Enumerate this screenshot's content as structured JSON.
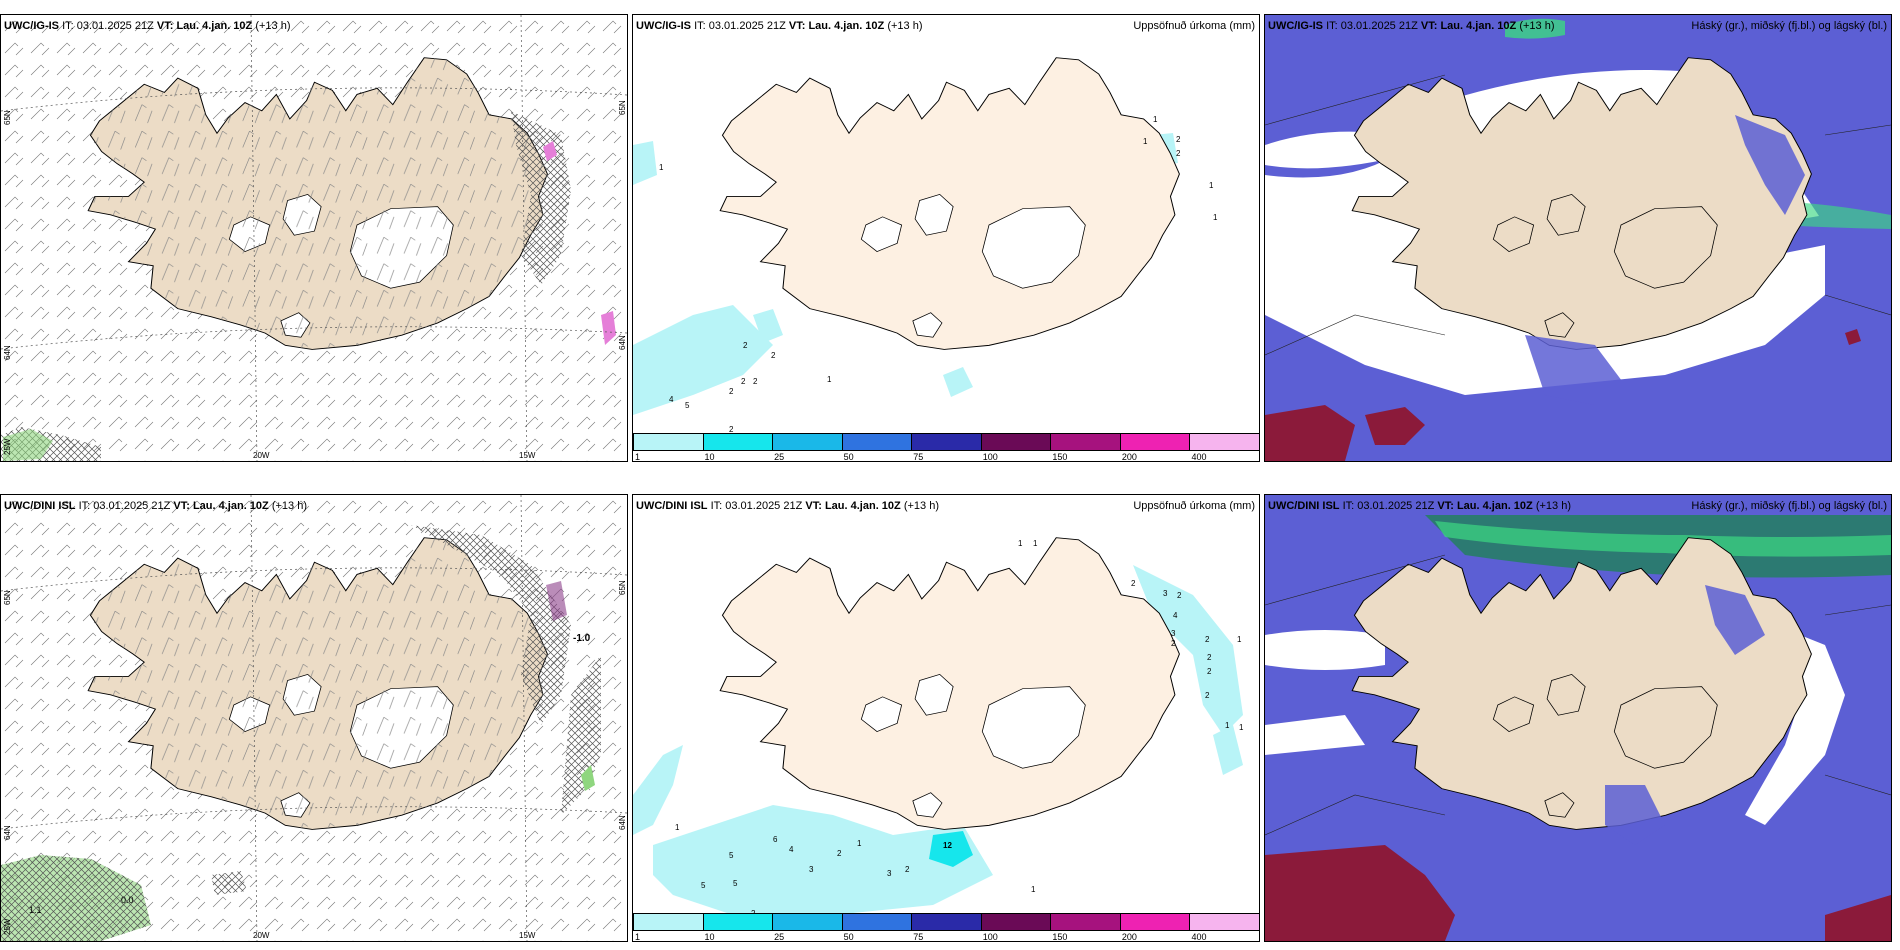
{
  "panels": [
    {
      "id": "top-left",
      "model": "UWC/IG-IS",
      "it_label": "IT:",
      "it_value": "03.01.2025 21Z",
      "vt_label": "VT:",
      "vt_value": "Lau. 4.jan. 10Z",
      "lead": "(+13 h)",
      "product": "",
      "lat_labels": [
        "65N",
        "64N",
        "63N"
      ],
      "lon_labels": [
        "20W",
        "15W"
      ],
      "extra_labels": [
        "25W"
      ]
    },
    {
      "id": "top-middle",
      "model": "UWC/IG-IS",
      "it_label": "IT:",
      "it_value": "03.01.2025 21Z",
      "vt_label": "VT:",
      "vt_value": "Lau. 4.jan. 10Z",
      "lead": "(+13 h)",
      "product": "Uppsöfnuð úrkoma (mm)",
      "precip_labels": [
        "1",
        "1",
        "2",
        "2",
        "1",
        "1",
        "1",
        "2",
        "2",
        "2",
        "2",
        "4",
        "5",
        "1",
        "2",
        "2"
      ]
    },
    {
      "id": "top-right",
      "model": "UWC/IG-IS",
      "it_label": "IT:",
      "it_value": "03.01.2025 21Z",
      "vt_label": "VT:",
      "vt_value": "Lau. 4.jan. 10Z",
      "lead": "(+13 h)",
      "product": "Háský (gr.), miðský (fj.bl.) og lágský (bl.)"
    },
    {
      "id": "bottom-left",
      "model": "UWC/DINI ISL",
      "it_label": "IT:",
      "it_value": "03.01.2025 21Z",
      "vt_label": "VT:",
      "vt_value": "Lau. 4.jan. 10Z",
      "lead": "(+13 h)",
      "product": "",
      "lat_labels": [
        "65N",
        "64N",
        "63N"
      ],
      "lon_labels": [
        "20W",
        "15W"
      ],
      "extra_labels": [
        "25W",
        "-1.0",
        "1.1",
        "0.0"
      ]
    },
    {
      "id": "bottom-middle",
      "model": "UWC/DINI ISL",
      "it_label": "IT:",
      "it_value": "03.01.2025 21Z",
      "vt_label": "VT:",
      "vt_value": "Lau. 4.jan. 10Z",
      "lead": "(+13 h)",
      "product": "Uppsöfnuð úrkoma (mm)",
      "precip_labels": [
        "1",
        "1",
        "2",
        "3",
        "2",
        "4",
        "3",
        "2",
        "2",
        "2",
        "2",
        "2",
        "1",
        "1",
        "1",
        "1",
        "5",
        "6",
        "4",
        "3",
        "2",
        "1",
        "5",
        "5",
        "3",
        "2",
        "12",
        "1",
        "2"
      ]
    },
    {
      "id": "bottom-right",
      "model": "UWC/DINI ISL",
      "it_label": "IT:",
      "it_value": "03.01.2025 21Z",
      "vt_label": "VT:",
      "vt_value": "Lau. 4.jan. 10Z",
      "lead": "(+13 h)",
      "product": "Háský (gr.), miðský (fj.bl.) og lágský (bl.)"
    }
  ],
  "colorbar": {
    "ticks": [
      "1",
      "10",
      "25",
      "50",
      "75",
      "100",
      "150",
      "200",
      "400"
    ],
    "colors": [
      "#b8f4f7",
      "#16e6ec",
      "#1ab8e8",
      "#2f73e0",
      "#2a2aa8",
      "#6a0a56",
      "#a6127e",
      "#ee22b2",
      "#f6b4ee"
    ]
  },
  "colors": {
    "land": "#ecdcc6",
    "land_precip": "#fdf0e2",
    "sea": "#ffffff",
    "low_cloud": "#5c5fd4",
    "mid_cloud": "#3f89ee",
    "high_cloud": "#3cd882",
    "dense_cloud": "#8b1a3a",
    "precip_light": "#b8f4f7",
    "hatch": "#555555"
  }
}
